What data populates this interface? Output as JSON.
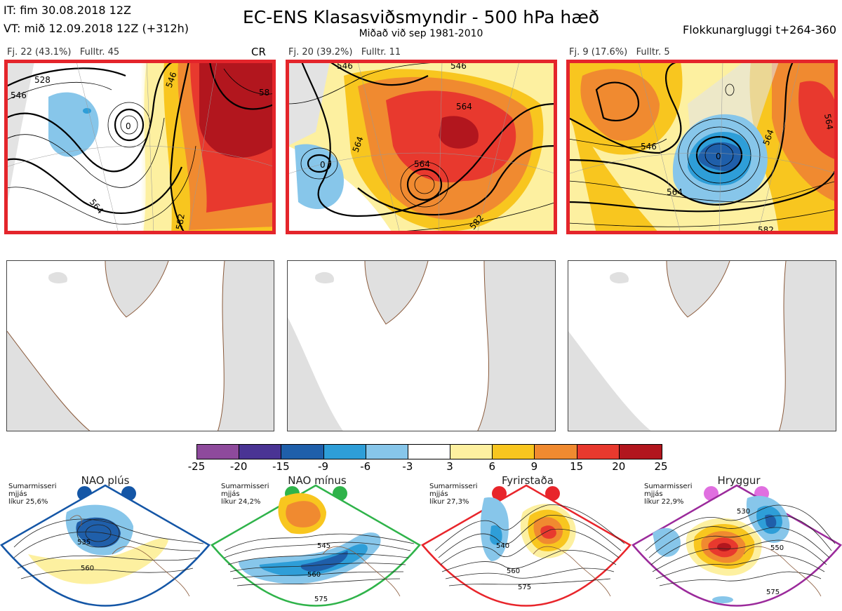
{
  "header": {
    "it_line": "IT: fim 30.08.2018 12Z",
    "vt_line": "VT: mið 12.09.2018 12Z  (+312h)",
    "title": "EC-ENS Klasasviðsmyndir - 500 hPa hæð",
    "subtitle": "Miðað við sep 1981-2010",
    "window": "Flokkunargluggi t+264-360"
  },
  "clusters": [
    {
      "label": "Fj. 22 (43.1%)",
      "members": "Fulltr. 45",
      "tag": "CR",
      "contours": [
        "528",
        "546",
        "546",
        "564",
        "582",
        "58",
        "0"
      ]
    },
    {
      "label": "Fj. 20 (39.2%)",
      "members": "Fulltr. 11",
      "tag": "",
      "contours": [
        "564",
        "564",
        "564",
        "546",
        "582",
        "0",
        "546"
      ]
    },
    {
      "label": "Fj. 9 (17.6%)",
      "members": "Fulltr. 5",
      "tag": "",
      "contours": [
        "546",
        "564",
        "564",
        "582",
        "564",
        "0"
      ]
    }
  ],
  "colorbar": {
    "ticks": [
      "-25",
      "-20",
      "-15",
      "-9",
      "-6",
      "-3",
      "3",
      "6",
      "9",
      "15",
      "20",
      "25"
    ],
    "colors": [
      "#8e4a9c",
      "#4a3494",
      "#1f5faa",
      "#2e9ed8",
      "#87c6ea",
      "#ffffff",
      "#fdf0a0",
      "#f8c61f",
      "#f08a30",
      "#e8392e",
      "#b2161e"
    ]
  },
  "regimes": [
    {
      "name": "NAO plús",
      "season": "Sumarmisseri",
      "mean": "mjjás",
      "prob": "líkur 25,6%",
      "color": "#1456a6",
      "contours": [
        "535",
        "560"
      ]
    },
    {
      "name": "NAO mínus",
      "season": "Sumarmisseri",
      "mean": "mjjás",
      "prob": "líkur 24,2%",
      "color": "#2fb34a",
      "contours": [
        "545",
        "560",
        "575"
      ]
    },
    {
      "name": "Fyrirstaða",
      "season": "Sumarmisseri",
      "mean": "mjjás",
      "prob": "líkur 27,3%",
      "color": "#e8252b",
      "contours": [
        "540",
        "560",
        "575"
      ]
    },
    {
      "name": "Hryggur",
      "season": "Sumarmisseri",
      "mean": "mjjás",
      "prob": "líkur 22,9%",
      "color": "#e06fe0",
      "contours": [
        "530",
        "550",
        "575"
      ]
    }
  ]
}
